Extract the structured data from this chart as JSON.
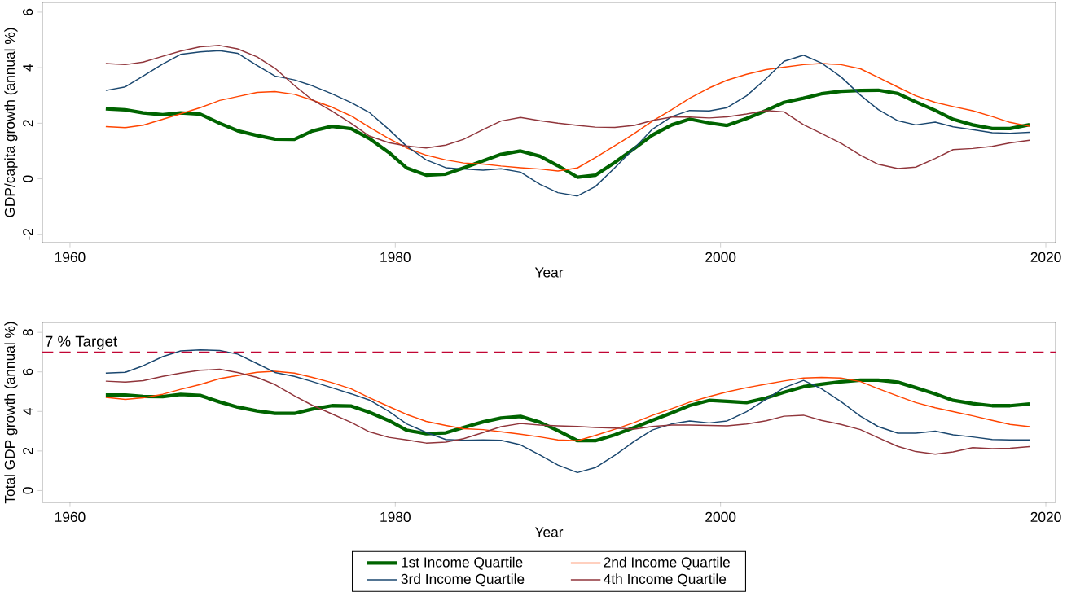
{
  "chart_data": [
    {
      "type": "line",
      "ylabel": "GDP/capita growth (annual %)",
      "xlabel": "Year",
      "x": [
        1962.2,
        1963.4,
        1964.5,
        1965.7,
        1966.8,
        1968.0,
        1969.2,
        1970.3,
        1971.5,
        1972.6,
        1973.8,
        1974.9,
        1976.1,
        1977.3,
        1978.4,
        1979.6,
        1980.7,
        1981.9,
        1983.1,
        1984.2,
        1985.4,
        1986.5,
        1987.7,
        1988.9,
        1990.0,
        1991.2,
        1992.3,
        1993.5,
        1994.7,
        1995.8,
        1997.0,
        1998.1,
        1999.3,
        2000.4,
        2001.6,
        2002.8,
        2003.9,
        2005.1,
        2006.2,
        2007.4,
        2008.6,
        2009.7,
        2010.9,
        2012.0,
        2013.2,
        2014.3,
        2015.5,
        2016.7,
        2017.8,
        2019.0
      ],
      "xlim": [
        1958.3,
        2020.6
      ],
      "ylim": [
        -2.3,
        6.35
      ],
      "xticks": [
        1960,
        1980,
        2000,
        2020
      ],
      "yticks": [
        -2,
        0,
        2,
        4,
        6
      ],
      "grid": false,
      "legend": false,
      "marker": "none",
      "series": [
        {
          "color": "#006400",
          "values": [
            2.52,
            2.48,
            2.37,
            2.31,
            2.37,
            2.33,
            2.0,
            1.73,
            1.56,
            1.43,
            1.42,
            1.72,
            1.89,
            1.8,
            1.45,
            0.95,
            0.39,
            0.13,
            0.17,
            0.39,
            0.65,
            0.88,
            1.0,
            0.81,
            0.47,
            0.06,
            0.13,
            0.59,
            1.09,
            1.57,
            1.94,
            2.15,
            2.01,
            1.92,
            2.17,
            2.46,
            2.75,
            2.9,
            3.06,
            3.15,
            3.18,
            3.19,
            3.07,
            2.77,
            2.46,
            2.14,
            1.94,
            1.81,
            1.81,
            1.95
          ]
        },
        {
          "color": "#ff4500",
          "values": [
            1.88,
            1.84,
            1.93,
            2.14,
            2.34,
            2.56,
            2.82,
            2.96,
            3.11,
            3.14,
            3.04,
            2.83,
            2.58,
            2.26,
            1.86,
            1.45,
            1.11,
            0.85,
            0.68,
            0.57,
            0.53,
            0.46,
            0.4,
            0.35,
            0.28,
            0.39,
            0.76,
            1.19,
            1.63,
            2.07,
            2.49,
            2.9,
            3.27,
            3.55,
            3.76,
            3.93,
            4.02,
            4.11,
            4.15,
            4.11,
            3.96,
            3.65,
            3.3,
            2.99,
            2.75,
            2.6,
            2.45,
            2.24,
            2.03,
            1.89
          ]
        },
        {
          "color": "#1a476f",
          "values": [
            3.18,
            3.31,
            3.7,
            4.13,
            4.48,
            4.57,
            4.61,
            4.52,
            4.08,
            3.7,
            3.56,
            3.35,
            3.06,
            2.74,
            2.39,
            1.78,
            1.17,
            0.68,
            0.4,
            0.35,
            0.31,
            0.36,
            0.24,
            -0.2,
            -0.5,
            -0.62,
            -0.28,
            0.4,
            1.1,
            1.78,
            2.24,
            2.46,
            2.44,
            2.56,
            2.99,
            3.61,
            4.23,
            4.45,
            4.17,
            3.67,
            3.01,
            2.49,
            2.09,
            1.94,
            2.04,
            1.87,
            1.77,
            1.66,
            1.64,
            1.67
          ]
        },
        {
          "color": "#90353b",
          "values": [
            4.15,
            4.11,
            4.2,
            4.41,
            4.6,
            4.75,
            4.8,
            4.68,
            4.39,
            3.98,
            3.36,
            2.84,
            2.44,
            1.99,
            1.54,
            1.3,
            1.18,
            1.11,
            1.21,
            1.42,
            1.77,
            2.08,
            2.21,
            2.09,
            2.0,
            1.92,
            1.86,
            1.85,
            1.92,
            2.1,
            2.22,
            2.22,
            2.19,
            2.23,
            2.33,
            2.46,
            2.41,
            1.95,
            1.63,
            1.28,
            0.85,
            0.52,
            0.37,
            0.42,
            0.73,
            1.05,
            1.09,
            1.17,
            1.29,
            1.39
          ]
        }
      ]
    },
    {
      "type": "line",
      "ylabel": "Total GDP growth (annual %)",
      "xlabel": "Year",
      "x": [
        1962.2,
        1963.4,
        1964.5,
        1965.7,
        1966.8,
        1968.0,
        1969.2,
        1970.3,
        1971.5,
        1972.6,
        1973.8,
        1974.9,
        1976.1,
        1977.3,
        1978.4,
        1979.6,
        1980.7,
        1981.9,
        1983.1,
        1984.2,
        1985.4,
        1986.5,
        1987.7,
        1988.9,
        1990.0,
        1991.2,
        1992.3,
        1993.5,
        1994.7,
        1995.8,
        1997.0,
        1998.1,
        1999.3,
        2000.4,
        2001.6,
        2002.8,
        2003.9,
        2005.1,
        2006.2,
        2007.4,
        2008.6,
        2009.7,
        2010.9,
        2012.0,
        2013.2,
        2014.3,
        2015.5,
        2016.7,
        2017.8,
        2019.0
      ],
      "xlim": [
        1958.3,
        2020.6
      ],
      "ylim": [
        -0.6,
        8.5
      ],
      "xticks": [
        1960,
        1980,
        2000,
        2020
      ],
      "yticks": [
        0,
        2,
        4,
        6,
        8
      ],
      "grid": false,
      "legend": "bottom",
      "marker": "none",
      "ref_lines": [
        {
          "axis": "y",
          "value": 7,
          "label": "7 % Target",
          "color": "#c10534",
          "line_style": "dashed"
        }
      ],
      "series": [
        {
          "name": "1st Income Quartile",
          "color": "#006400",
          "values": [
            4.83,
            4.83,
            4.76,
            4.75,
            4.86,
            4.81,
            4.48,
            4.22,
            4.03,
            3.9,
            3.9,
            4.12,
            4.29,
            4.27,
            3.96,
            3.54,
            3.05,
            2.87,
            2.92,
            3.19,
            3.47,
            3.67,
            3.75,
            3.45,
            3.03,
            2.52,
            2.52,
            2.82,
            3.19,
            3.55,
            3.93,
            4.3,
            4.56,
            4.51,
            4.45,
            4.68,
            4.97,
            5.25,
            5.38,
            5.5,
            5.58,
            5.58,
            5.48,
            5.2,
            4.89,
            4.56,
            4.4,
            4.29,
            4.29,
            4.38
          ]
        },
        {
          "name": "2nd Income Quartile",
          "color": "#ff4500",
          "values": [
            4.71,
            4.61,
            4.69,
            4.87,
            5.12,
            5.36,
            5.66,
            5.81,
            5.98,
            6.03,
            5.94,
            5.72,
            5.46,
            5.14,
            4.7,
            4.25,
            3.85,
            3.5,
            3.29,
            3.13,
            3.08,
            2.97,
            2.85,
            2.71,
            2.56,
            2.52,
            2.79,
            3.1,
            3.44,
            3.8,
            4.14,
            4.47,
            4.75,
            4.99,
            5.2,
            5.38,
            5.54,
            5.69,
            5.72,
            5.69,
            5.51,
            5.15,
            4.78,
            4.45,
            4.19,
            3.99,
            3.78,
            3.55,
            3.34,
            3.23
          ]
        },
        {
          "name": "3rd Income Quartile",
          "color": "#1a476f",
          "values": [
            5.94,
            5.98,
            6.31,
            6.77,
            7.06,
            7.11,
            7.08,
            6.9,
            6.42,
            5.97,
            5.77,
            5.51,
            5.2,
            4.89,
            4.58,
            4.01,
            3.37,
            2.94,
            2.58,
            2.54,
            2.56,
            2.54,
            2.31,
            1.79,
            1.29,
            0.91,
            1.16,
            1.78,
            2.49,
            3.06,
            3.37,
            3.52,
            3.42,
            3.52,
            3.99,
            4.61,
            5.2,
            5.57,
            5.15,
            4.5,
            3.76,
            3.23,
            2.9,
            2.9,
            3.0,
            2.82,
            2.71,
            2.58,
            2.56,
            2.56
          ]
        },
        {
          "name": "4th Income Quartile",
          "color": "#90353b",
          "values": [
            5.53,
            5.48,
            5.56,
            5.77,
            5.94,
            6.08,
            6.13,
            5.97,
            5.72,
            5.36,
            4.79,
            4.31,
            3.88,
            3.44,
            2.97,
            2.69,
            2.56,
            2.4,
            2.45,
            2.62,
            2.93,
            3.23,
            3.39,
            3.31,
            3.27,
            3.24,
            3.19,
            3.16,
            3.11,
            3.24,
            3.31,
            3.31,
            3.29,
            3.27,
            3.36,
            3.53,
            3.76,
            3.81,
            3.55,
            3.34,
            3.08,
            2.67,
            2.23,
            1.97,
            1.84,
            1.95,
            2.17,
            2.12,
            2.14,
            2.22
          ]
        }
      ]
    }
  ]
}
